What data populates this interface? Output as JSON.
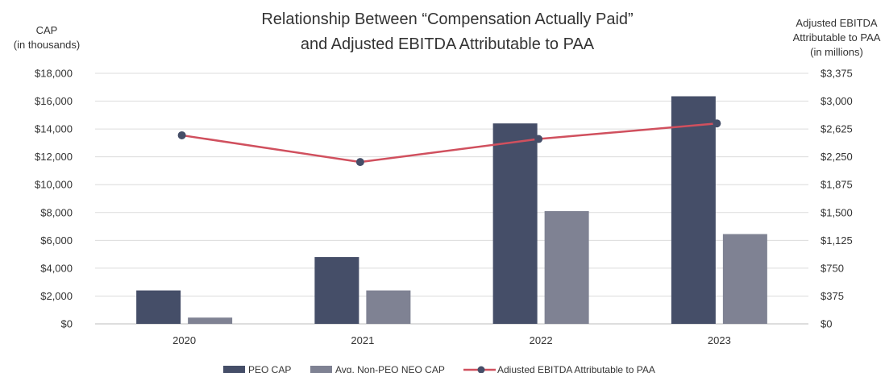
{
  "chart_data": {
    "type": "bar",
    "title_line1": "Relationship Between “Compensation Actually Paid”",
    "title_line2": "and Adjusted EBITDA Attributable to PAA",
    "left_axis_label_line1": "CAP",
    "left_axis_label_line2": "(in thousands)",
    "right_axis_label_line1": "Adjusted EBITDA",
    "right_axis_label_line2": "Attributable to PAA",
    "right_axis_label_line3": "(in millions)",
    "categories": [
      "2020",
      "2021",
      "2022",
      "2023"
    ],
    "left_ylim": [
      0,
      18000
    ],
    "right_ylim": [
      0,
      3375
    ],
    "left_ticks": [
      {
        "value": 0,
        "label": "$0"
      },
      {
        "value": 2000,
        "label": "$2,000"
      },
      {
        "value": 4000,
        "label": "$4,000"
      },
      {
        "value": 6000,
        "label": "$6,000"
      },
      {
        "value": 8000,
        "label": "$8,000"
      },
      {
        "value": 10000,
        "label": "$10,000"
      },
      {
        "value": 12000,
        "label": "$12,000"
      },
      {
        "value": 14000,
        "label": "$14,000"
      },
      {
        "value": 16000,
        "label": "$16,000"
      },
      {
        "value": 18000,
        "label": "$18,000"
      }
    ],
    "right_ticks": [
      {
        "value": 0,
        "label": "$0"
      },
      {
        "value": 375,
        "label": "$375"
      },
      {
        "value": 750,
        "label": "$750"
      },
      {
        "value": 1125,
        "label": "$1,125"
      },
      {
        "value": 1500,
        "label": "$1,500"
      },
      {
        "value": 1875,
        "label": "$1,875"
      },
      {
        "value": 2250,
        "label": "$2,250"
      },
      {
        "value": 2625,
        "label": "$2,625"
      },
      {
        "value": 3000,
        "label": "$3,000"
      },
      {
        "value": 3375,
        "label": "$3,375"
      }
    ],
    "grid": true,
    "legend_position": "bottom",
    "series": [
      {
        "name": "PEO CAP",
        "kind": "bar",
        "axis": "left",
        "color": "#454e68",
        "values": [
          2400,
          4800,
          14400,
          16350
        ]
      },
      {
        "name": "Avg. Non-PEO NEO CAP",
        "kind": "bar",
        "axis": "left",
        "color": "#7f8293",
        "values": [
          450,
          2400,
          8100,
          6450
        ]
      },
      {
        "name": "Adjusted EBITDA Attributable to PAA",
        "kind": "line",
        "axis": "right",
        "color": "#d0505e",
        "marker_color": "#454e68",
        "values": [
          2540,
          2180,
          2490,
          2700
        ]
      }
    ]
  }
}
